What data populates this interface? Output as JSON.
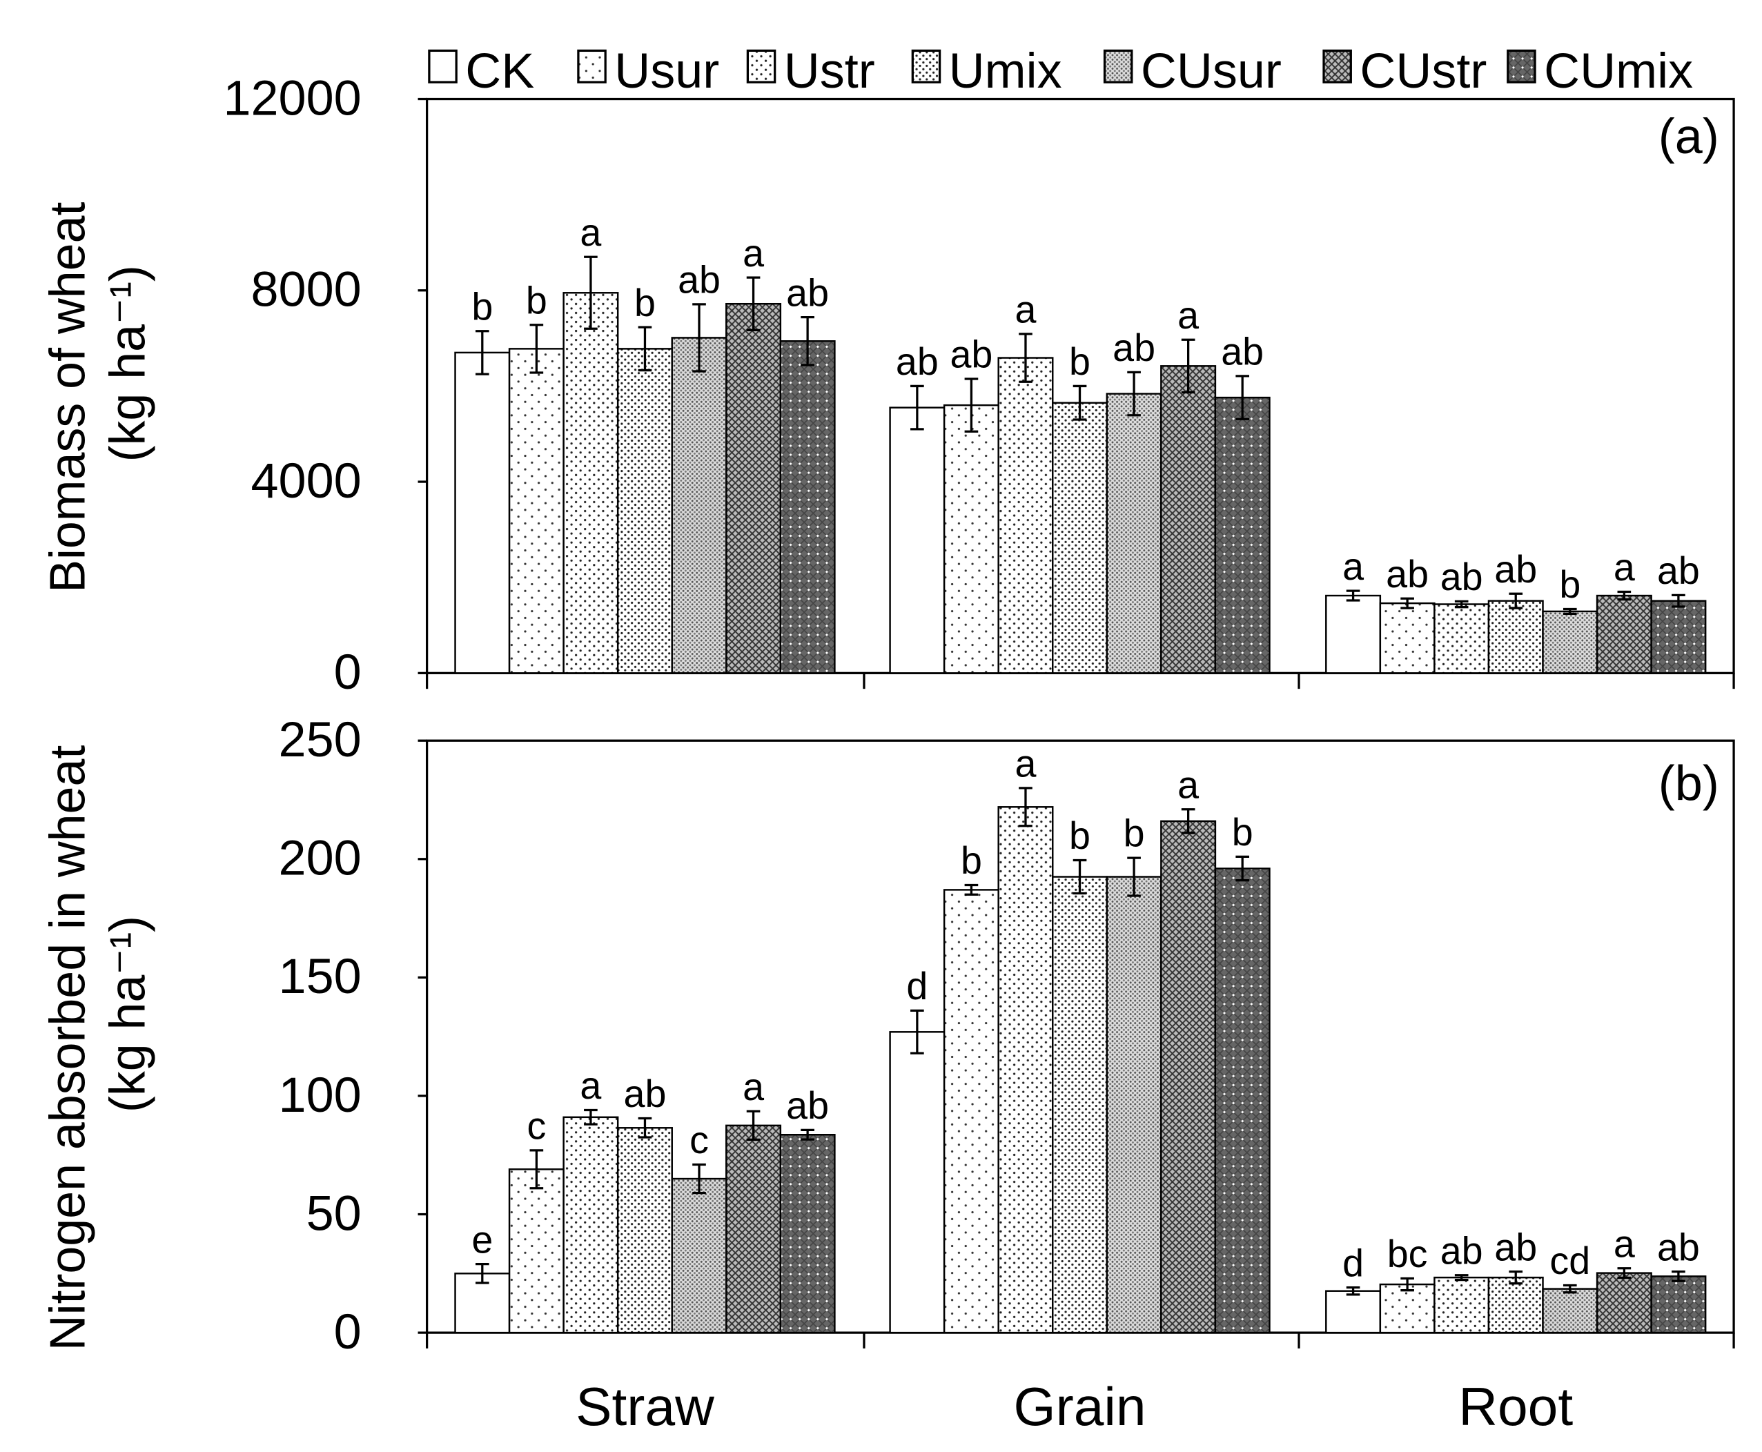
{
  "chart_data": [
    {
      "type": "bar",
      "panel_label": "(a)",
      "ylabel": "Biomass of wheat",
      "ylabel_unit": "(kg ha⁻¹)",
      "ylim": [
        0,
        12000
      ],
      "yticks": [
        0,
        4000,
        8000,
        12000
      ],
      "categories": [
        "Straw",
        "Grain",
        "Root"
      ],
      "legend": {
        "placement": "top",
        "entries": [
          "CK",
          "Usur",
          "Ustr",
          "Umix",
          "CUsur",
          "CUstr",
          "CUmix"
        ]
      },
      "series": [
        {
          "name": "CK",
          "values": [
            6700,
            5550,
            1620
          ],
          "errors": [
            450,
            450,
            100
          ],
          "letters": [
            "b",
            "ab",
            "a"
          ]
        },
        {
          "name": "Usur",
          "values": [
            6780,
            5600,
            1460
          ],
          "errors": [
            500,
            550,
            100
          ],
          "letters": [
            "b",
            "ab",
            "ab"
          ]
        },
        {
          "name": "Ustr",
          "values": [
            7950,
            6590,
            1440
          ],
          "errors": [
            750,
            500,
            60
          ],
          "letters": [
            "a",
            "a",
            "ab"
          ]
        },
        {
          "name": "Umix",
          "values": [
            6780,
            5650,
            1510
          ],
          "errors": [
            450,
            350,
            150
          ],
          "letters": [
            "b",
            "b",
            "ab"
          ]
        },
        {
          "name": "CUsur",
          "values": [
            7010,
            5840,
            1290
          ],
          "errors": [
            700,
            450,
            50
          ],
          "letters": [
            "ab",
            "ab",
            "b"
          ]
        },
        {
          "name": "CUstr",
          "values": [
            7720,
            6420,
            1620
          ],
          "errors": [
            550,
            550,
            80
          ],
          "letters": [
            "a",
            "a",
            "a"
          ]
        },
        {
          "name": "CUmix",
          "values": [
            6940,
            5760,
            1510
          ],
          "errors": [
            500,
            450,
            120
          ],
          "letters": [
            "ab",
            "ab",
            "ab"
          ]
        }
      ]
    },
    {
      "type": "bar",
      "panel_label": "(b)",
      "ylabel": "Nitrogen absorbed in wheat",
      "ylabel_unit": "(kg ha⁻¹)",
      "ylim": [
        0,
        250
      ],
      "yticks": [
        0,
        50,
        100,
        150,
        200,
        250
      ],
      "categories": [
        "Straw",
        "Grain",
        "Root"
      ],
      "series": [
        {
          "name": "CK",
          "values": [
            25,
            127,
            17.6
          ],
          "errors": [
            4,
            9,
            1.5
          ],
          "letters": [
            "e",
            "d",
            "d"
          ]
        },
        {
          "name": "Usur",
          "values": [
            69,
            187,
            20.4
          ],
          "errors": [
            8,
            2,
            2.5
          ],
          "letters": [
            "c",
            "b",
            "bc"
          ]
        },
        {
          "name": "Ustr",
          "values": [
            91,
            222,
            23.3
          ],
          "errors": [
            3,
            8,
            1
          ],
          "letters": [
            "a",
            "a",
            "ab"
          ]
        },
        {
          "name": "Umix",
          "values": [
            86.5,
            192.5,
            23.3
          ],
          "errors": [
            4,
            7,
            2.5
          ],
          "letters": [
            "ab",
            "b",
            "ab"
          ]
        },
        {
          "name": "CUsur",
          "values": [
            65,
            192.5,
            18.5
          ],
          "errors": [
            6,
            8,
            1.5
          ],
          "letters": [
            "c",
            "b",
            "cd"
          ]
        },
        {
          "name": "CUstr",
          "values": [
            87.5,
            216,
            25.2
          ],
          "errors": [
            6,
            5,
            2
          ],
          "letters": [
            "a",
            "a",
            "a"
          ]
        },
        {
          "name": "CUmix",
          "values": [
            83.6,
            196,
            23.8
          ],
          "errors": [
            2,
            5,
            2
          ],
          "letters": [
            "ab",
            "b",
            "ab"
          ]
        }
      ]
    }
  ]
}
